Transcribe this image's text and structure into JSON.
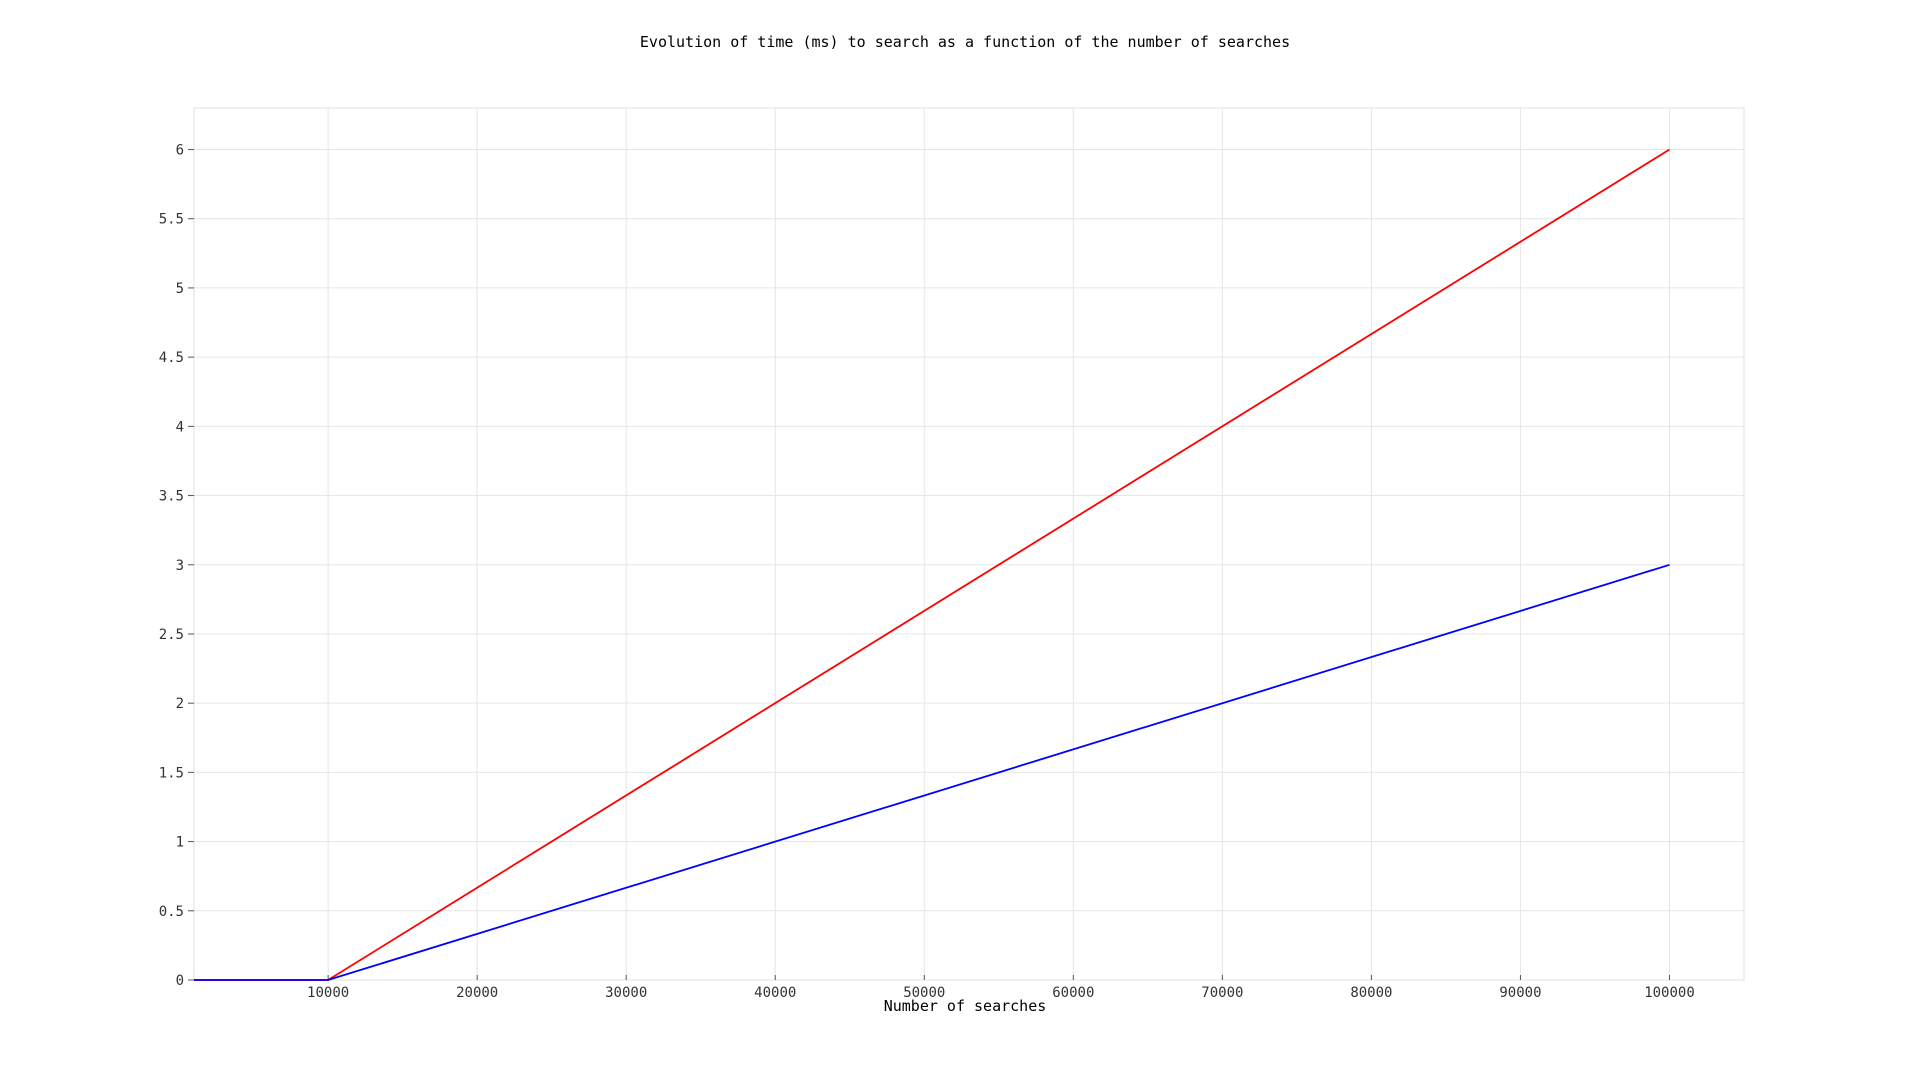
{
  "chart_data": {
    "type": "line",
    "title": "Evolution of time (ms) to search as a function of the number of searches",
    "xlabel": "Number of searches",
    "ylabel": "",
    "xlim": [
      1000,
      105000
    ],
    "ylim": [
      0,
      6.3
    ],
    "xticks": [
      10000,
      20000,
      30000,
      40000,
      50000,
      60000,
      70000,
      80000,
      90000,
      100000
    ],
    "yticks": [
      0,
      0.5,
      1,
      1.5,
      2,
      2.5,
      3,
      3.5,
      4,
      4.5,
      5,
      5.5,
      6
    ],
    "grid": true,
    "legend": "none",
    "series": [
      {
        "color": "#ff0000",
        "x": [
          1000,
          10000,
          100000
        ],
        "y": [
          0,
          0,
          6
        ]
      },
      {
        "color": "#0000ff",
        "x": [
          1000,
          10000,
          100000
        ],
        "y": [
          0,
          0,
          3
        ]
      }
    ]
  }
}
